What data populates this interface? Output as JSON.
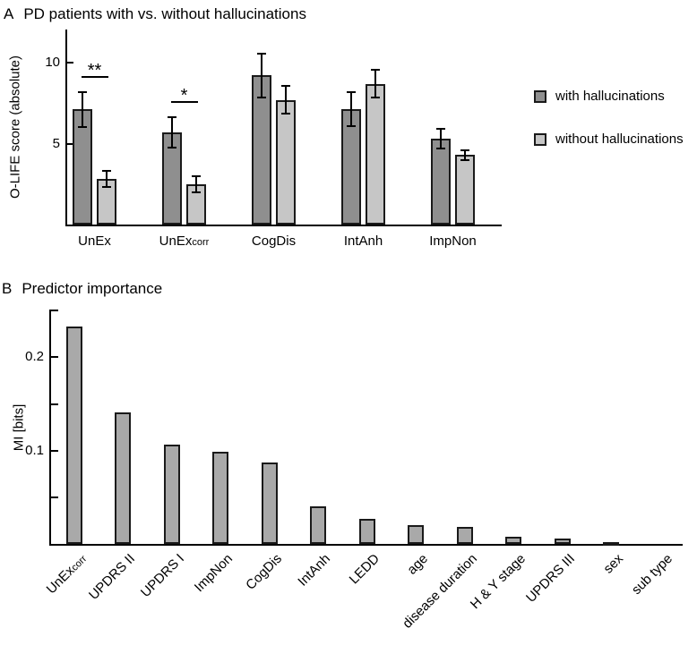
{
  "panelA": {
    "letter": "A",
    "title": "PD patients with vs. without hallucinations"
  },
  "panelB": {
    "letter": "B",
    "title": "Predictor importance"
  },
  "chart_data": [
    {
      "type": "bar",
      "panel": "A",
      "title": "PD patients with vs. without hallucinations",
      "ylabel": "O-LIFE score (absolute)",
      "ylim": [
        0,
        12
      ],
      "yticks": [
        5,
        10
      ],
      "grid": false,
      "legend_position": "right",
      "categories": [
        {
          "text": "UnEx",
          "sub": ""
        },
        {
          "text": "UnEx",
          "sub": "corr"
        },
        {
          "text": "CogDis",
          "sub": ""
        },
        {
          "text": "IntAnh",
          "sub": ""
        },
        {
          "text": "ImpNon",
          "sub": ""
        }
      ],
      "series": [
        {
          "name": "with hallucinations",
          "color": "#8f8f8f",
          "values": [
            7.1,
            5.7,
            9.2,
            7.1,
            5.3
          ],
          "errors": [
            1.1,
            0.95,
            1.35,
            1.05,
            0.6
          ]
        },
        {
          "name": "without hallucinations",
          "color": "#c6c6c6",
          "values": [
            2.8,
            2.5,
            7.7,
            8.7,
            4.3
          ],
          "errors": [
            0.5,
            0.5,
            0.85,
            0.85,
            0.3
          ]
        }
      ],
      "significance": [
        {
          "category_index": 0,
          "label": "**"
        },
        {
          "category_index": 1,
          "label": "*"
        }
      ]
    },
    {
      "type": "bar",
      "panel": "B",
      "title": "Predictor importance",
      "ylabel": "MI [bits]",
      "ylim": [
        0,
        0.25
      ],
      "yticks_labeled": [
        "0.1",
        "0.2"
      ],
      "yticks_minor": [
        0.05,
        0.15,
        0.25
      ],
      "grid": false,
      "bar_color": "#a9a9a9",
      "categories": [
        {
          "text": "UnEx",
          "sub": "corr"
        },
        {
          "text": "UPDRS II",
          "sub": ""
        },
        {
          "text": "UPDRS I",
          "sub": ""
        },
        {
          "text": "ImpNon",
          "sub": ""
        },
        {
          "text": "CogDis",
          "sub": ""
        },
        {
          "text": "IntAnh",
          "sub": ""
        },
        {
          "text": "LEDD",
          "sub": ""
        },
        {
          "text": "age",
          "sub": ""
        },
        {
          "text": "disease duration",
          "sub": ""
        },
        {
          "text": "H & Y stage",
          "sub": ""
        },
        {
          "text": "UPDRS III",
          "sub": ""
        },
        {
          "text": "sex",
          "sub": ""
        },
        {
          "text": "sub type",
          "sub": ""
        }
      ],
      "values": [
        0.233,
        0.141,
        0.106,
        0.099,
        0.087,
        0.04,
        0.027,
        0.02,
        0.018,
        0.008,
        0.006,
        0.002,
        0
      ]
    }
  ]
}
